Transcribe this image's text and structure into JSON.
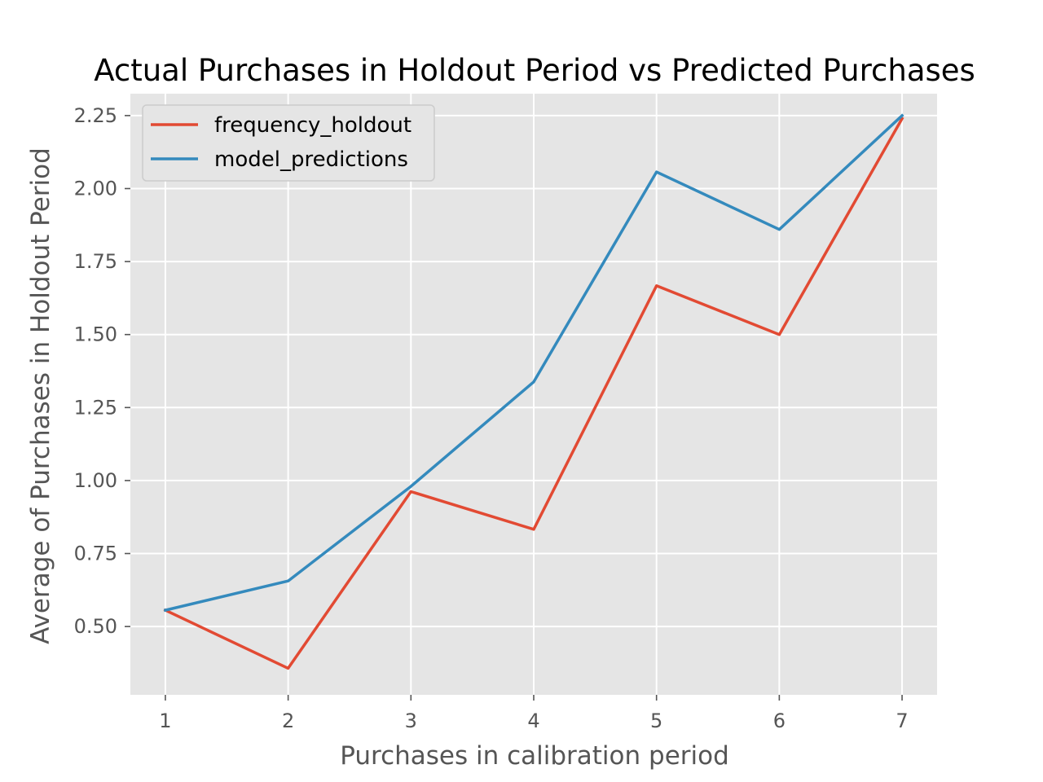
{
  "chart_data": {
    "type": "line",
    "title": "Actual Purchases in Holdout Period vs Predicted Purchases",
    "xlabel": "Purchases in calibration period",
    "ylabel": "Average of Purchases in Holdout Period",
    "x": [
      1,
      2,
      3,
      4,
      5,
      6,
      7
    ],
    "x_tick_labels": [
      "1",
      "2",
      "3",
      "4",
      "5",
      "6",
      "7"
    ],
    "y_tick_labels": [
      "0.50",
      "0.75",
      "1.00",
      "1.25",
      "1.50",
      "1.75",
      "2.00",
      "2.25"
    ],
    "xlim": [
      0.715,
      7.285
    ],
    "ylim": [
      0.266,
      2.325
    ],
    "grid": true,
    "legend_position": "upper-left",
    "background_color": "#e5e5e5",
    "series": [
      {
        "name": "frequency_holdout",
        "color": "#e24a33",
        "values": [
          0.556,
          0.357,
          0.962,
          0.833,
          1.667,
          1.5,
          2.24
        ]
      },
      {
        "name": "model_predictions",
        "color": "#348abd",
        "values": [
          0.556,
          0.656,
          0.98,
          1.338,
          2.057,
          1.86,
          2.25
        ]
      }
    ]
  }
}
